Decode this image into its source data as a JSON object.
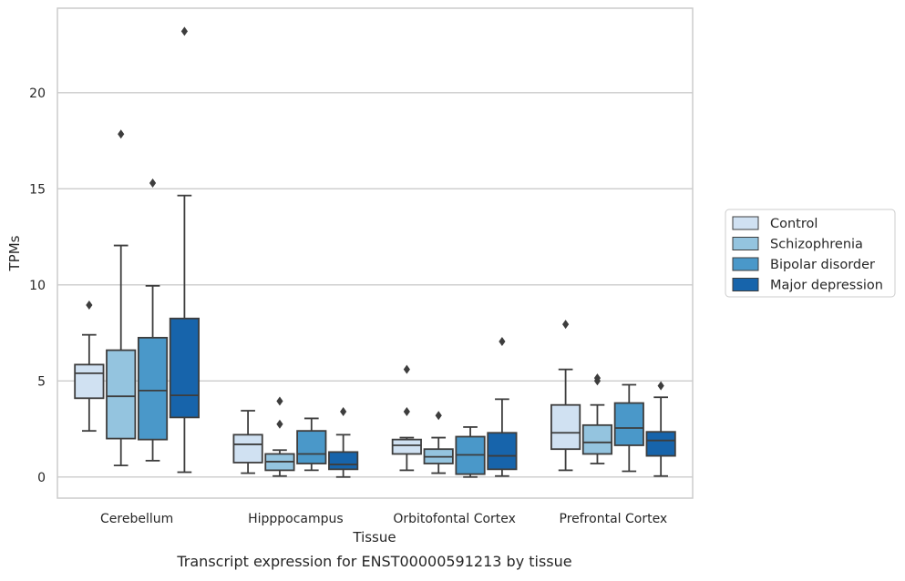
{
  "chart_data": {
    "type": "box",
    "title": "",
    "caption": "Transcript expression for ENST00000591213 by tissue",
    "xlabel": "Tissue",
    "ylabel": "TPMs",
    "ylim": [
      -1.1,
      24.4
    ],
    "yticks": [
      0,
      5,
      10,
      15,
      20
    ],
    "grid": "horizontal",
    "legend_position": "right-center",
    "categories": [
      "Cerebellum",
      "Hipppocampus",
      "Orbitofontal Cortex",
      "Prefrontal Cortex"
    ],
    "series": [
      {
        "name": "Control",
        "color": "#d0e1f2",
        "boxes": [
          {
            "whislo": 2.4,
            "q1": 4.1,
            "med": 5.4,
            "q3": 5.85,
            "whishi": 7.4,
            "fliers": [
              8.95
            ]
          },
          {
            "whislo": 0.2,
            "q1": 0.75,
            "med": 1.7,
            "q3": 2.2,
            "whishi": 3.45,
            "fliers": []
          },
          {
            "whislo": 0.35,
            "q1": 1.2,
            "med": 1.65,
            "q3": 1.95,
            "whishi": 2.05,
            "fliers": [
              5.6,
              3.4
            ]
          },
          {
            "whislo": 0.35,
            "q1": 1.45,
            "med": 2.3,
            "q3": 3.75,
            "whishi": 5.6,
            "fliers": [
              7.95
            ]
          }
        ]
      },
      {
        "name": "Schizophrenia",
        "color": "#94c4df",
        "boxes": [
          {
            "whislo": 0.6,
            "q1": 2.0,
            "med": 4.2,
            "q3": 6.6,
            "whishi": 12.05,
            "fliers": [
              17.85
            ]
          },
          {
            "whislo": 0.05,
            "q1": 0.35,
            "med": 0.8,
            "q3": 1.2,
            "whishi": 1.4,
            "fliers": [
              2.75,
              3.95
            ]
          },
          {
            "whislo": 0.2,
            "q1": 0.7,
            "med": 1.05,
            "q3": 1.45,
            "whishi": 2.05,
            "fliers": [
              3.2
            ]
          },
          {
            "whislo": 0.7,
            "q1": 1.2,
            "med": 1.8,
            "q3": 2.7,
            "whishi": 3.75,
            "fliers": [
              5.0,
              5.15
            ]
          }
        ]
      },
      {
        "name": "Bipolar disorder",
        "color": "#4a98c9",
        "boxes": [
          {
            "whislo": 0.85,
            "q1": 1.95,
            "med": 4.5,
            "q3": 7.25,
            "whishi": 9.95,
            "fliers": [
              15.3
            ]
          },
          {
            "whislo": 0.35,
            "q1": 0.7,
            "med": 1.2,
            "q3": 2.4,
            "whishi": 3.05,
            "fliers": []
          },
          {
            "whislo": 0.0,
            "q1": 0.15,
            "med": 1.15,
            "q3": 2.1,
            "whishi": 2.6,
            "fliers": []
          },
          {
            "whislo": 0.3,
            "q1": 1.65,
            "med": 2.55,
            "q3": 3.85,
            "whishi": 4.8,
            "fliers": []
          }
        ]
      },
      {
        "name": "Major depression",
        "color": "#1764ab",
        "boxes": [
          {
            "whislo": 0.25,
            "q1": 3.1,
            "med": 4.25,
            "q3": 8.25,
            "whishi": 14.65,
            "fliers": [
              23.2
            ]
          },
          {
            "whislo": 0.0,
            "q1": 0.4,
            "med": 0.65,
            "q3": 1.3,
            "whishi": 2.2,
            "fliers": [
              3.4
            ]
          },
          {
            "whislo": 0.05,
            "q1": 0.4,
            "med": 1.1,
            "q3": 2.3,
            "whishi": 4.05,
            "fliers": [
              7.05
            ]
          },
          {
            "whislo": 0.05,
            "q1": 1.1,
            "med": 1.9,
            "q3": 2.35,
            "whishi": 4.15,
            "fliers": [
              4.75
            ]
          }
        ]
      }
    ]
  }
}
